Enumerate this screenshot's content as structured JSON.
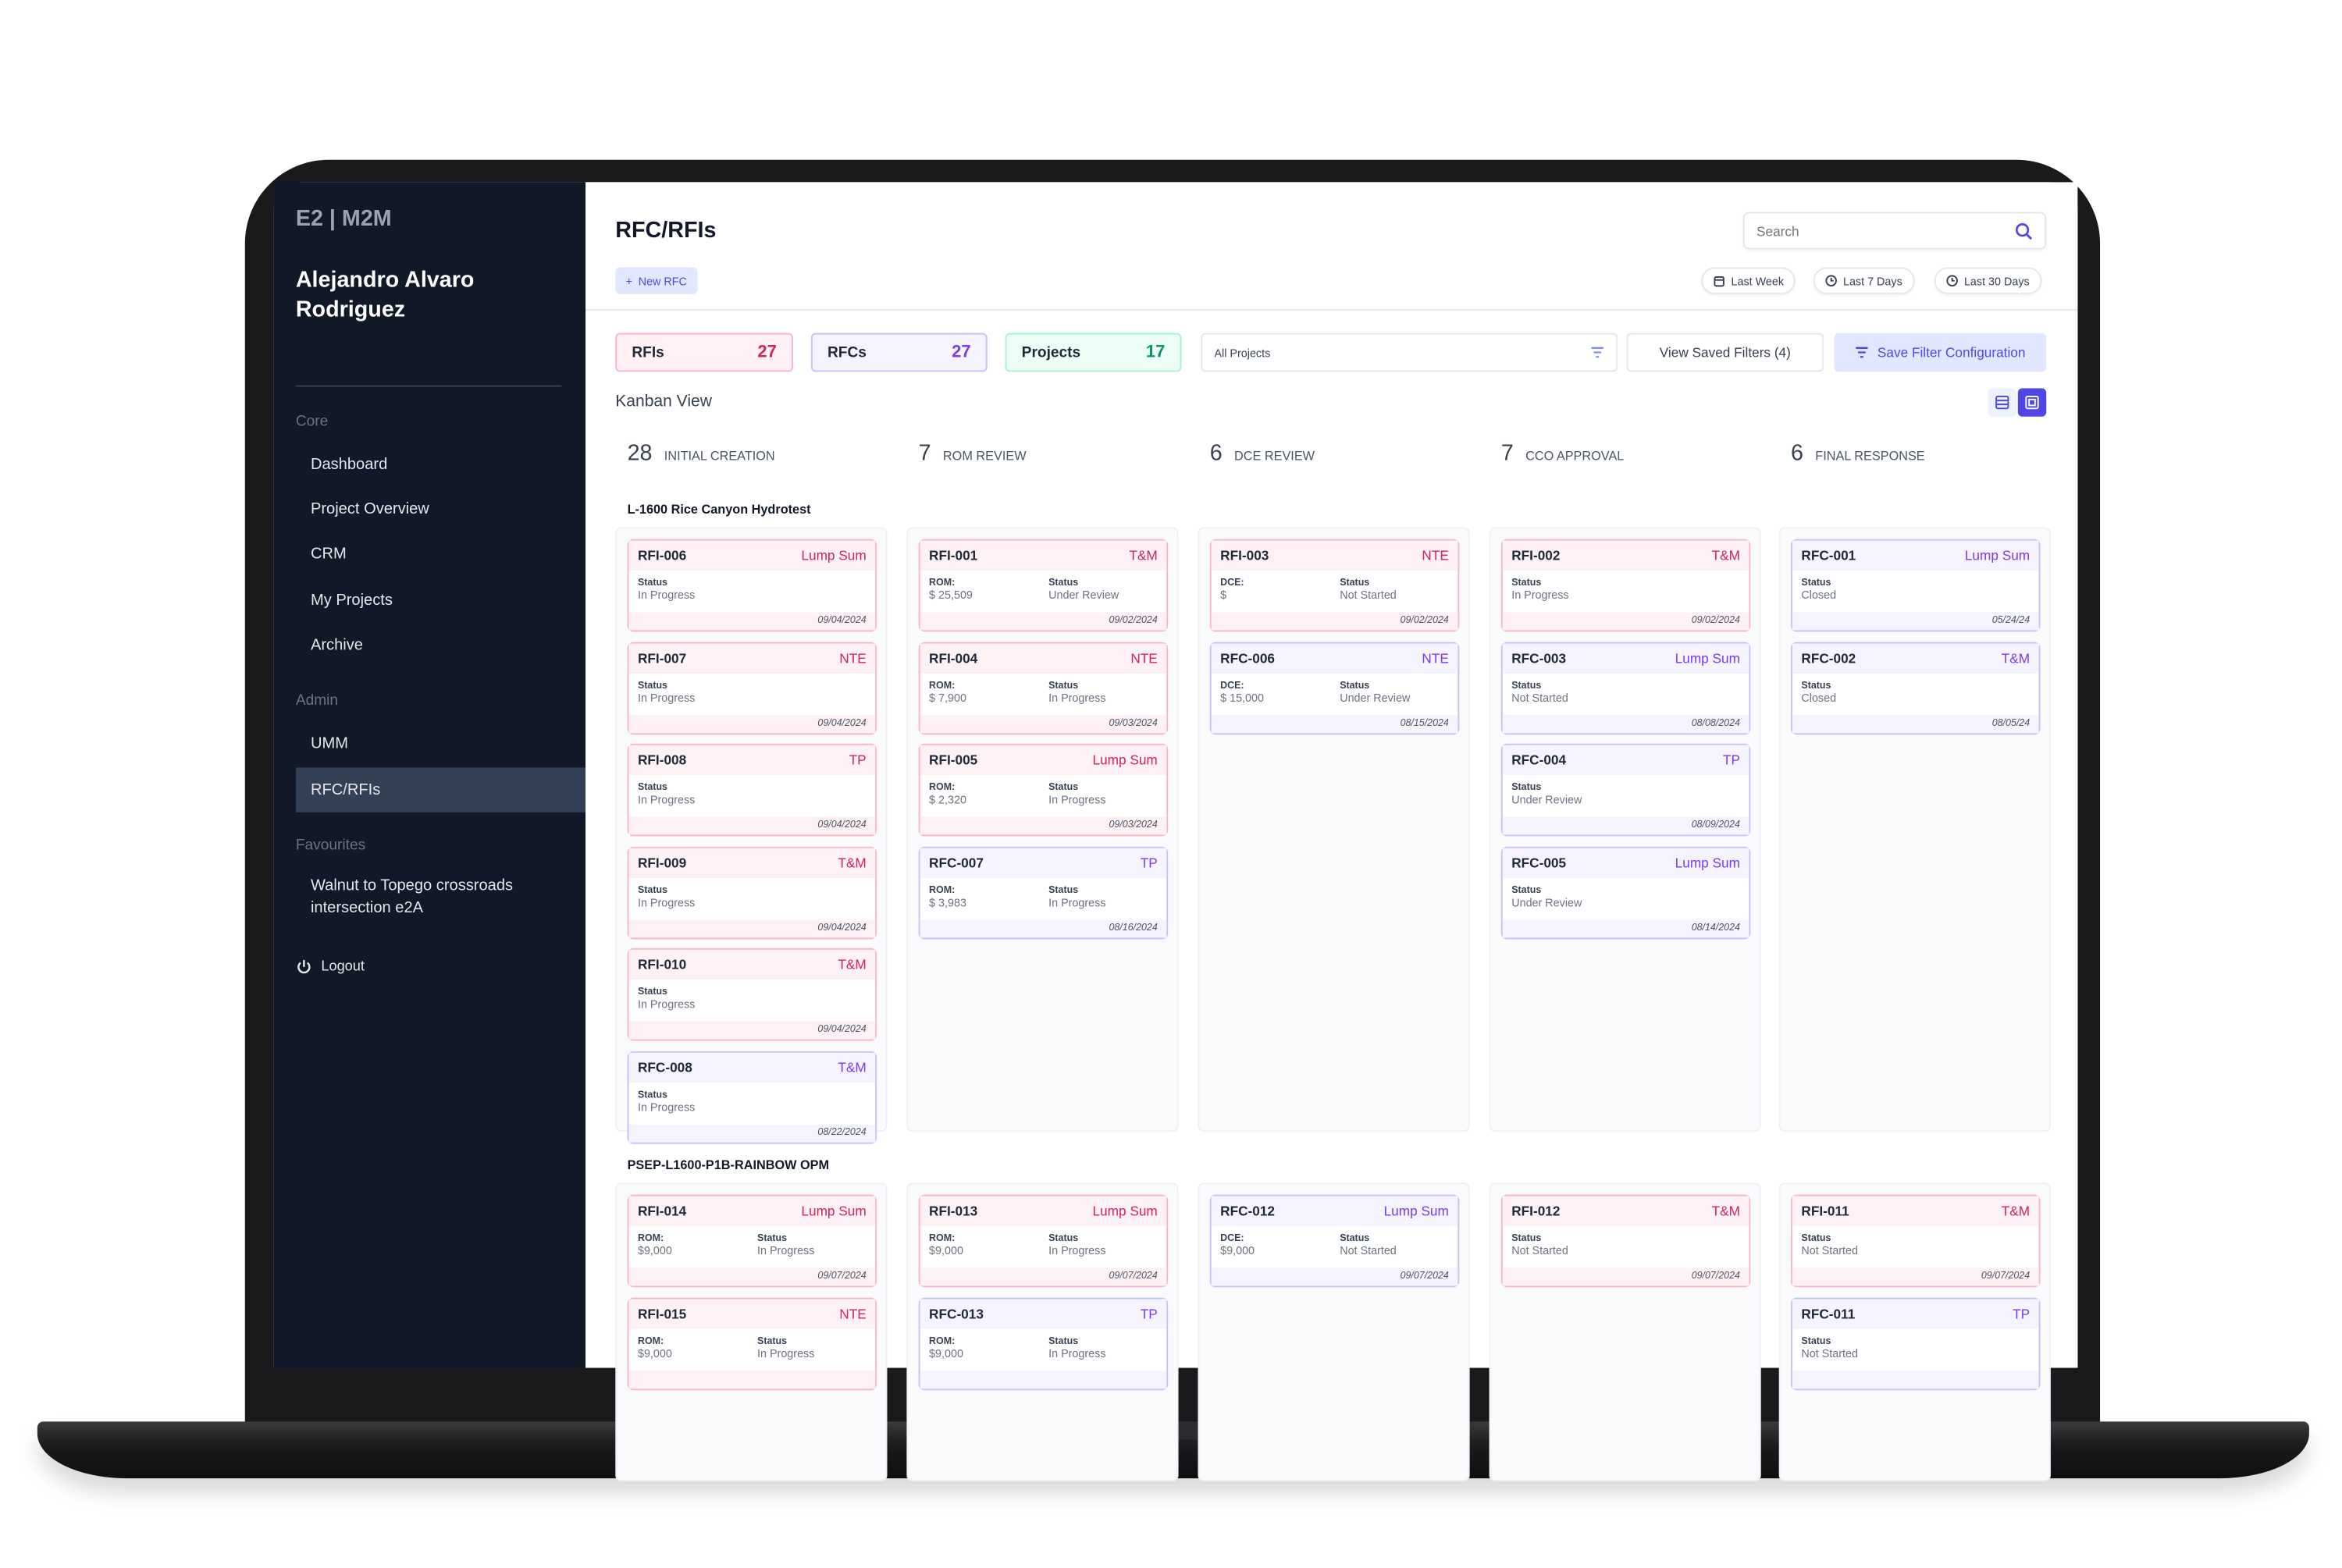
{
  "brand": "E2 | M2M",
  "user_name": "Alejandro Alvaro Rodriguez",
  "sidebar": {
    "sections": [
      {
        "title": "Core",
        "items": [
          "Dashboard",
          "Project Overview",
          "CRM",
          "My Projects",
          "Archive"
        ]
      },
      {
        "title": "Admin",
        "items": [
          "UMM",
          "RFC/RFIs"
        ]
      },
      {
        "title": "Favourites",
        "items": [
          "Walnut to Topego crossroads intersection e2A"
        ]
      }
    ],
    "active_item": "RFC/RFIs",
    "logout": "Logout"
  },
  "header": {
    "title": "RFC/RFIs",
    "new_button": "New RFC",
    "search_placeholder": "Search",
    "date_filters": [
      "Last Week",
      "Last 7 Days",
      "Last 30 Days"
    ]
  },
  "stats": [
    {
      "label": "RFIs",
      "count": "27",
      "color": "#d1235a"
    },
    {
      "label": "RFCs",
      "count": "27",
      "color": "#7c3aed"
    },
    {
      "label": "Projects",
      "count": "17",
      "color": "#059669"
    }
  ],
  "filters": {
    "project_select": "All Projects",
    "view_saved": "View Saved Filters (4)",
    "save_config": "Save Filter Configuration"
  },
  "view_title": "Kanban View",
  "active_view": "kanban",
  "columns": [
    {
      "count": "28",
      "label": "INITIAL CREATION"
    },
    {
      "count": "7",
      "label": "ROM REVIEW"
    },
    {
      "count": "6",
      "label": "DCE REVIEW"
    },
    {
      "count": "7",
      "label": "CCO APPROVAL"
    },
    {
      "count": "6",
      "label": "FINAL RESPONSE"
    }
  ],
  "status_label": "Status",
  "colors": {
    "rfi_accent": "#d1235a",
    "rfc_accent": "#7c3aed",
    "sidebar_bg": "#111827",
    "primary": "#4f46e5"
  },
  "groups": [
    {
      "name": "L-1600 Rice Canyon Hydrotest",
      "columns": [
        {
          "cards": [
            {
              "kind": "rfi",
              "id": "RFI-006",
              "type": "Lump Sum",
              "status": "In Progress",
              "date": "09/04/2024"
            },
            {
              "kind": "rfi",
              "id": "RFI-007",
              "type": "NTE",
              "status": "In Progress",
              "date": "09/04/2024"
            },
            {
              "kind": "rfi",
              "id": "RFI-008",
              "type": "TP",
              "status": "In Progress",
              "date": "09/04/2024"
            },
            {
              "kind": "rfi",
              "id": "RFI-009",
              "type": "T&M",
              "status": "In Progress",
              "date": "09/04/2024"
            },
            {
              "kind": "rfi",
              "id": "RFI-010",
              "type": "T&M",
              "status": "In Progress",
              "date": "09/04/2024"
            },
            {
              "kind": "rfc",
              "id": "RFC-008",
              "type": "T&M",
              "status": "In Progress",
              "date": "08/22/2024"
            }
          ]
        },
        {
          "cards": [
            {
              "kind": "rfi",
              "id": "RFI-001",
              "type": "T&M",
              "field_label": "ROM:",
              "field_value": "$ 25,509",
              "status": "Under Review",
              "date": "09/02/2024"
            },
            {
              "kind": "rfi",
              "id": "RFI-004",
              "type": "NTE",
              "field_label": "ROM:",
              "field_value": "$ 7,900",
              "status": "In Progress",
              "date": "09/03/2024"
            },
            {
              "kind": "rfi",
              "id": "RFI-005",
              "type": "Lump Sum",
              "field_label": "ROM:",
              "field_value": "$ 2,320",
              "status": "In Progress",
              "date": "09/03/2024"
            },
            {
              "kind": "rfc",
              "id": "RFC-007",
              "type": "TP",
              "field_label": "ROM:",
              "field_value": "$ 3,983",
              "status": "In Progress",
              "date": "08/16/2024"
            }
          ]
        },
        {
          "cards": [
            {
              "kind": "rfi",
              "id": "RFI-003",
              "type": "NTE",
              "field_label": "DCE:",
              "field_value": "$",
              "status": "Not Started",
              "date": "09/02/2024"
            },
            {
              "kind": "rfc",
              "id": "RFC-006",
              "type": "NTE",
              "field_label": "DCE:",
              "field_value": "$ 15,000",
              "status": "Under Review",
              "date": "08/15/2024"
            }
          ]
        },
        {
          "cards": [
            {
              "kind": "rfi",
              "id": "RFI-002",
              "type": "T&M",
              "status": "In Progress",
              "date": "09/02/2024"
            },
            {
              "kind": "rfc",
              "id": "RFC-003",
              "type": "Lump Sum",
              "status": "Not Started",
              "date": "08/08/2024"
            },
            {
              "kind": "rfc",
              "id": "RFC-004",
              "type": "TP",
              "status": "Under Review",
              "date": "08/09/2024"
            },
            {
              "kind": "rfc",
              "id": "RFC-005",
              "type": "Lump Sum",
              "status": "Under Review",
              "date": "08/14/2024"
            }
          ]
        },
        {
          "cards": [
            {
              "kind": "rfc",
              "id": "RFC-001",
              "type": "Lump Sum",
              "status": "Closed",
              "date": "05/24/24"
            },
            {
              "kind": "rfc",
              "id": "RFC-002",
              "type": "T&M",
              "status": "Closed",
              "date": "08/05/24"
            }
          ]
        }
      ]
    },
    {
      "name": "PSEP-L1600-P1B-RAINBOW OPM",
      "columns": [
        {
          "cards": [
            {
              "kind": "rfi",
              "id": "RFI-014",
              "type": "Lump Sum",
              "field_label": "ROM:",
              "field_value": "$9,000",
              "status": "In Progress",
              "date": "09/07/2024"
            },
            {
              "kind": "rfi",
              "id": "RFI-015",
              "type": "NTE",
              "field_label": "ROM:",
              "field_value": "$9,000",
              "status": "In Progress"
            }
          ]
        },
        {
          "cards": [
            {
              "kind": "rfi",
              "id": "RFI-013",
              "type": "Lump Sum",
              "field_label": "ROM:",
              "field_value": "$9,000",
              "status": "In Progress",
              "date": "09/07/2024"
            },
            {
              "kind": "rfc",
              "id": "RFC-013",
              "type": "TP",
              "field_label": "ROM:",
              "field_value": "$9,000",
              "status": "In Progress"
            }
          ]
        },
        {
          "cards": [
            {
              "kind": "rfc",
              "id": "RFC-012",
              "type": "Lump Sum",
              "field_label": "DCE:",
              "field_value": "$9,000",
              "status": "Not Started",
              "date": "09/07/2024"
            }
          ]
        },
        {
          "cards": [
            {
              "kind": "rfi",
              "id": "RFI-012",
              "type": "T&M",
              "status": "Not Started",
              "date": "09/07/2024"
            }
          ]
        },
        {
          "cards": [
            {
              "kind": "rfi",
              "id": "RFI-011",
              "type": "T&M",
              "status": "Not Started",
              "date": "09/07/2024"
            },
            {
              "kind": "rfc",
              "id": "RFC-011",
              "type": "TP",
              "status": "Not Started"
            }
          ]
        }
      ]
    }
  ]
}
